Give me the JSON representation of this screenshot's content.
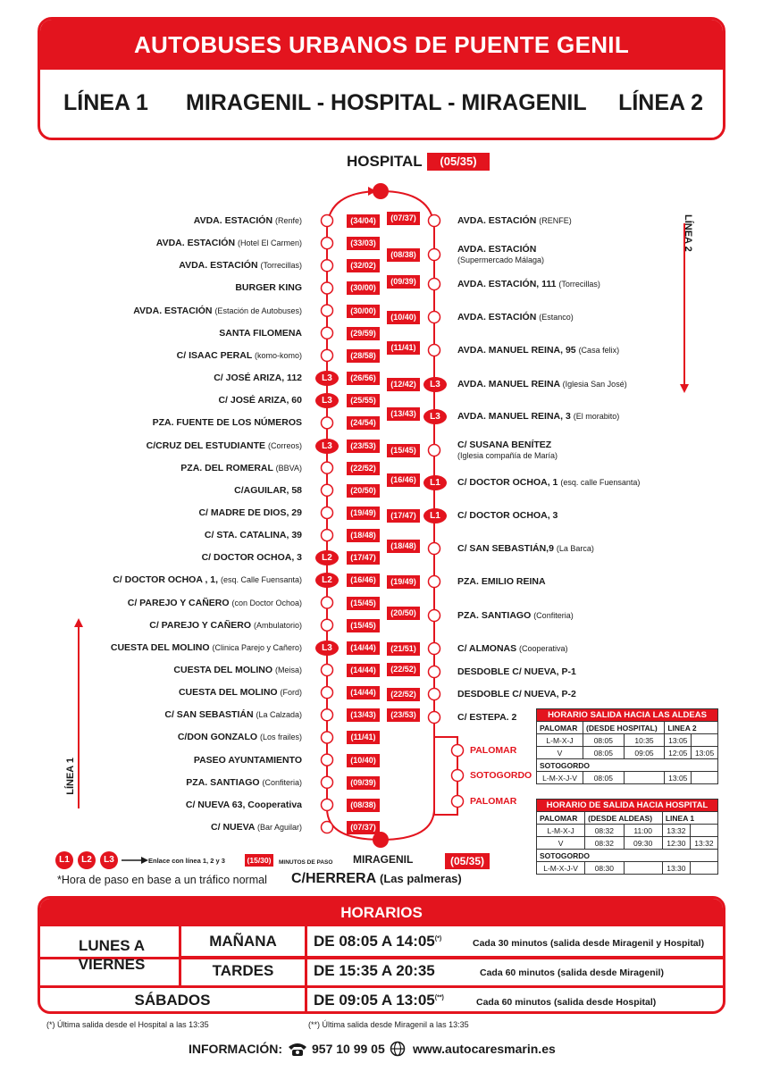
{
  "header": {
    "title": "AUTOBUSES URBANOS DE PUENTE GENIL",
    "line1": "LÍNEA 1",
    "route": "MIRAGENIL - HOSPITAL - MIRAGENIL",
    "line2": "LÍNEA 2"
  },
  "hospital": {
    "name": "HOSPITAL",
    "time": "(05/35)"
  },
  "miragenil": {
    "name": "MIRAGENIL",
    "time": "(05/35)",
    "street": "C/HERRERA",
    "street_note": "(Las palmeras)"
  },
  "side_labels": {
    "linea2": "LÍNEA 2",
    "linea1": "LÍNEA 1"
  },
  "left_stops": [
    {
      "name": "AVDA. ESTACIÓN",
      "note": "(Renfe)",
      "time": "(34/04)",
      "badge": ""
    },
    {
      "name": "AVDA. ESTACIÓN",
      "note": "(Hotel El Carmen)",
      "time": "(33/03)",
      "badge": ""
    },
    {
      "name": "AVDA. ESTACIÓN",
      "note": "(Torrecillas)",
      "time": "(32/02)",
      "badge": ""
    },
    {
      "name": "BURGER KING",
      "note": "",
      "time": "(30/00)",
      "badge": ""
    },
    {
      "name": "AVDA. ESTACIÓN",
      "note": "(Estación de Autobuses)",
      "time": "(30/00)",
      "badge": ""
    },
    {
      "name": "SANTA FILOMENA",
      "note": "",
      "time": "(29/59)",
      "badge": ""
    },
    {
      "name": "C/ ISAAC PERAL",
      "note": "(komo-komo)",
      "time": "(28/58)",
      "badge": ""
    },
    {
      "name": "C/ JOSÉ ARIZA, 112",
      "note": "",
      "time": "(26/56)",
      "badge": "L3"
    },
    {
      "name": "C/ JOSÉ ARIZA, 60",
      "note": "",
      "time": "(25/55)",
      "badge": "L3"
    },
    {
      "name": "PZA. FUENTE DE LOS NÚMEROS",
      "note": "",
      "time": "(24/54)",
      "badge": ""
    },
    {
      "name": "C/CRUZ DEL ESTUDIANTE",
      "note": "(Correos)",
      "time": "(23/53)",
      "badge": "L3"
    },
    {
      "name": "PZA. DEL ROMERAL",
      "note": "(BBVA)",
      "time": "(22/52)",
      "badge": ""
    },
    {
      "name": "C/AGUILAR, 58",
      "note": "",
      "time": "(20/50)",
      "badge": ""
    },
    {
      "name": "C/ MADRE DE DIOS, 29",
      "note": "",
      "time": "(19/49)",
      "badge": ""
    },
    {
      "name": "C/ STA. CATALINA, 39",
      "note": "",
      "time": "(18/48)",
      "badge": ""
    },
    {
      "name": "C/ DOCTOR OCHOA, 3",
      "note": "",
      "time": "(17/47)",
      "badge": "L2"
    },
    {
      "name": "C/ DOCTOR OCHOA , 1,",
      "note": "(esq. Calle Fuensanta)",
      "time": "(16/46)",
      "badge": "L2"
    },
    {
      "name": "C/ PAREJO Y CAÑERO",
      "note": "(con Doctor Ochoa)",
      "time": "(15/45)",
      "badge": ""
    },
    {
      "name": "C/ PAREJO Y CAÑERO",
      "note": "(Ambulatorio)",
      "time": "(15/45)",
      "badge": ""
    },
    {
      "name": "CUESTA DEL MOLINO",
      "note": "(Clinica Parejo y Cañero)",
      "time": "(14/44)",
      "badge": "L3"
    },
    {
      "name": "CUESTA DEL MOLINO",
      "note": "(Meisa)",
      "time": "(14/44)",
      "badge": ""
    },
    {
      "name": "CUESTA DEL MOLINO",
      "note": "(Ford)",
      "time": "(14/44)",
      "badge": ""
    },
    {
      "name": "C/ SAN SEBASTIÁN",
      "note": "(La Calzada)",
      "time": "(13/43)",
      "badge": ""
    },
    {
      "name": "C/DON GONZALO",
      "note": "(Los frailes)",
      "time": "(11/41)",
      "badge": ""
    },
    {
      "name": "PASEO AYUNTAMIENTO",
      "note": "",
      "time": "(10/40)",
      "badge": ""
    },
    {
      "name": "PZA. SANTIAGO",
      "note": "(Confiteria)",
      "time": "(09/39)",
      "badge": ""
    },
    {
      "name": "C/ NUEVA 63, Cooperativa",
      "note": "",
      "time": "(08/38)",
      "badge": ""
    },
    {
      "name": "C/ NUEVA",
      "note": "(Bar Aguilar)",
      "time": "(07/37)",
      "badge": ""
    }
  ],
  "right_stops": [
    {
      "name": "AVDA. ESTACIÓN",
      "note": "(RENFE)",
      "note2": "",
      "time": "(07/37)",
      "badge": ""
    },
    {
      "name": "AVDA. ESTACIÓN",
      "note": "",
      "note2": "(Supermercado Málaga)",
      "time": "(08/38)",
      "badge": ""
    },
    {
      "name": "AVDA. ESTACIÓN, 111",
      "note": "(Torrecillas)",
      "note2": "",
      "time": "(09/39)",
      "badge": ""
    },
    {
      "name": "AVDA. ESTACIÓN",
      "note": "(Estanco)",
      "note2": "",
      "time": "(10/40)",
      "badge": ""
    },
    {
      "name": "AVDA. MANUEL REINA, 95",
      "note": "(Casa felix)",
      "note2": "",
      "time": "(11/41)",
      "badge": ""
    },
    {
      "name": "AVDA. MANUEL REINA",
      "note": "(Iglesia San José)",
      "note2": "",
      "time": "(12/42)",
      "badge": "L3"
    },
    {
      "name": "AVDA. MANUEL REINA, 3",
      "note": "(El morabito)",
      "note2": "",
      "time": "(13/43)",
      "badge": "L3"
    },
    {
      "name": "C/ SUSANA BENÍTEZ",
      "note": "",
      "note2": "(Iglesia compañía de María)",
      "time": "(15/45)",
      "badge": ""
    },
    {
      "name": "C/ DOCTOR OCHOA, 1",
      "note": "(esq. calle Fuensanta)",
      "note2": "",
      "time": "(16/46)",
      "badge": "L1"
    },
    {
      "name": "C/ DOCTOR OCHOA, 3",
      "note": "",
      "note2": "",
      "time": "(17/47)",
      "badge": "L1"
    },
    {
      "name": "C/ SAN SEBASTIÁN,9",
      "note": "(La Barca)",
      "note2": "",
      "time": "(18/48)",
      "badge": ""
    },
    {
      "name": "PZA. EMILIO REINA",
      "note": "",
      "note2": "",
      "time": "(19/49)",
      "badge": ""
    },
    {
      "name": "PZA. SANTIAGO",
      "note": "(Confiteria)",
      "note2": "",
      "time": "(20/50)",
      "badge": ""
    },
    {
      "name": "C/ ALMONAS",
      "note": "(Cooperativa)",
      "note2": "",
      "time": "(21/51)",
      "badge": ""
    },
    {
      "name": "DESDOBLE C/ NUEVA, P-1",
      "note": "",
      "note2": "",
      "time": "(22/52)",
      "badge": ""
    },
    {
      "name": "DESDOBLE C/ NUEVA, P-2",
      "note": "",
      "note2": "",
      "time": "(22/52)",
      "badge": ""
    },
    {
      "name": "C/ ESTEPA. 2",
      "note": "",
      "note2": "",
      "time": "(23/53)",
      "badge": ""
    }
  ],
  "branch_stops": [
    "PALOMAR",
    "SOTOGORDO",
    "PALOMAR"
  ],
  "legend": {
    "badges": [
      "L1",
      "L2",
      "L3"
    ],
    "link_text": "Enlace con línea 1, 2 y 3",
    "sample_time": "(15/30)",
    "minutes_text": "MINUTOS DE PASO",
    "note": "*Hora de paso en base a un tráfico normal"
  },
  "aldeas": {
    "title": "HORARIO SALIDA HACIA LAS ALDEAS",
    "palomar": "PALOMAR",
    "desde": "(DESDE HOSPITAL)",
    "linea": "LINEA 2",
    "rows1": [
      {
        "day": "L-M-X-J",
        "times": [
          "08:05",
          "10:35",
          "13:05",
          ""
        ]
      },
      {
        "day": "V",
        "times": [
          "08:05",
          "09:05",
          "12:05",
          "13:05"
        ]
      }
    ],
    "sotogordo": "SOTOGORDO",
    "rows2": [
      {
        "day": "L-M-X-J-V",
        "times": [
          "08:05",
          "",
          "13:05",
          ""
        ]
      }
    ]
  },
  "hospital_sched": {
    "title": "HORARIO DE SALIDA HACIA HOSPITAL",
    "palomar": "PALOMAR",
    "desde": "(DESDE ALDEAS)",
    "linea": "LINEA 1",
    "rows1": [
      {
        "day": "L-M-X-J",
        "times": [
          "08:32",
          "11:00",
          "13:32",
          ""
        ]
      },
      {
        "day": "V",
        "times": [
          "08:32",
          "09:30",
          "12:30",
          "13:32"
        ]
      }
    ],
    "sotogordo": "SOTOGORDO",
    "rows2": [
      {
        "day": "L-M-X-J-V",
        "times": [
          "08:30",
          "",
          "13:30",
          ""
        ]
      }
    ]
  },
  "horarios": {
    "title": "HORARIOS",
    "weekdays": "LUNES A VIERNES",
    "manana": "MAÑANA",
    "manana_time": "DE 08:05 A 14:05",
    "manana_mark": "(*)",
    "manana_note": "Cada 30 minutos (salida desde Miragenil y Hospital)",
    "tardes": "TARDES",
    "tardes_time": "DE 15:35 A 20:35",
    "tardes_note": "Cada 60 minutos (salida desde Miragenil)",
    "sabados": "SÁBADOS",
    "sabados_time": "DE 09:05 A 13:05",
    "sabados_mark": "(**)",
    "sabados_note": "Cada 60 minutos (salida desde Hospital)"
  },
  "footnotes": {
    "f1": "(*) Última salida desde el Hospital a las 13:35",
    "f2": "(**) Última salida desde Miragenil a las 13:35"
  },
  "info": {
    "label": "INFORMACIÓN:",
    "phone": "957 10 99 05",
    "web": "www.autocaresmarin.es"
  },
  "colors": {
    "accent": "#e3141e",
    "text": "#1a1a1a"
  }
}
